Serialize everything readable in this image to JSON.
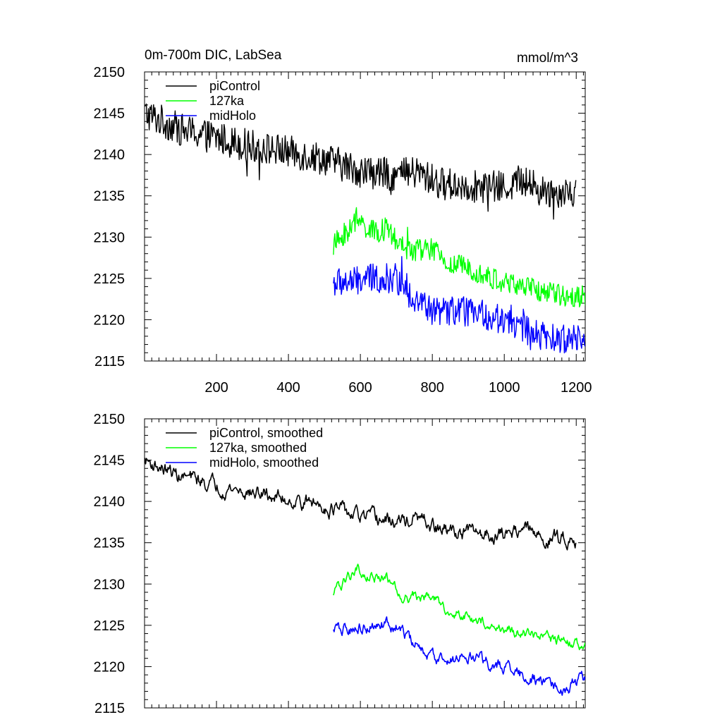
{
  "chart_data": [
    {
      "type": "line",
      "title": "0m-700m DIC, LabSea",
      "units": "mmol/m^3",
      "xlabel": "",
      "ylabel": "",
      "xlim": [
        0,
        1225
      ],
      "ylim": [
        2115,
        2150
      ],
      "xticks": [
        200,
        400,
        600,
        800,
        1000,
        1200
      ],
      "xtick_labels": [
        "200",
        "400",
        "600",
        "800",
        "1000",
        "1200"
      ],
      "yticks": [
        2115,
        2120,
        2125,
        2130,
        2135,
        2140,
        2145,
        2150
      ],
      "ytick_labels": [
        "2115",
        "2120",
        "2125",
        "2130",
        "2135",
        "2140",
        "2145",
        "2150"
      ],
      "grid": false,
      "legend_position": "top-left",
      "series": [
        {
          "name": "piControl",
          "color": "#000000",
          "x_start": 1,
          "x_end": 1200,
          "trend": [
            [
              0,
              2145
            ],
            [
              100,
              2143
            ],
            [
              200,
              2142
            ],
            [
              300,
              2141
            ],
            [
              400,
              2140.3
            ],
            [
              500,
              2139.5
            ],
            [
              600,
              2138
            ],
            [
              700,
              2137.5
            ],
            [
              760,
              2137.8
            ],
            [
              820,
              2136.5
            ],
            [
              900,
              2136.2
            ],
            [
              1000,
              2136
            ],
            [
              1050,
              2137
            ],
            [
              1100,
              2135.5
            ],
            [
              1200,
              2135.6
            ]
          ],
          "noise": 2.0
        },
        {
          "name": "127ka",
          "color": "#00ff00",
          "x_start": 525,
          "x_end": 1225,
          "trend": [
            [
              525,
              2129
            ],
            [
              560,
              2130.5
            ],
            [
              590,
              2132
            ],
            [
              640,
              2130.5
            ],
            [
              670,
              2131
            ],
            [
              720,
              2128.5
            ],
            [
              800,
              2128.5
            ],
            [
              850,
              2126.5
            ],
            [
              900,
              2126.5
            ],
            [
              960,
              2125
            ],
            [
              1050,
              2124
            ],
            [
              1150,
              2123
            ],
            [
              1225,
              2122.8
            ]
          ],
          "noise": 1.4
        },
        {
          "name": "midHolo",
          "color": "#0000ff",
          "x_start": 525,
          "x_end": 1225,
          "trend": [
            [
              525,
              2124.5
            ],
            [
              580,
              2124.5
            ],
            [
              620,
              2125
            ],
            [
              700,
              2125
            ],
            [
              740,
              2123
            ],
            [
              800,
              2121
            ],
            [
              850,
              2121
            ],
            [
              900,
              2121
            ],
            [
              1000,
              2120
            ],
            [
              1100,
              2118
            ],
            [
              1160,
              2117.5
            ],
            [
              1200,
              2118
            ],
            [
              1225,
              2118.5
            ]
          ],
          "noise": 1.8
        }
      ]
    },
    {
      "type": "line",
      "title": "",
      "units": "",
      "xlabel": "",
      "ylabel": "",
      "xlim": [
        0,
        1225
      ],
      "ylim": [
        2115,
        2150
      ],
      "xticks": [
        200,
        400,
        600,
        800,
        1000,
        1200
      ],
      "xtick_labels": [],
      "yticks": [
        2115,
        2120,
        2125,
        2130,
        2135,
        2140,
        2145,
        2150
      ],
      "ytick_labels": [
        "2115",
        "2120",
        "2125",
        "2130",
        "2135",
        "2140",
        "2145",
        "2150"
      ],
      "grid": false,
      "legend_position": "top-left",
      "series": [
        {
          "name": "piControl, smoothed",
          "color": "#000000",
          "x_start": 1,
          "x_end": 1200,
          "trend": [
            [
              0,
              2145
            ],
            [
              100,
              2143
            ],
            [
              200,
              2142
            ],
            [
              300,
              2141
            ],
            [
              400,
              2140.3
            ],
            [
              500,
              2139.5
            ],
            [
              600,
              2138
            ],
            [
              700,
              2137.5
            ],
            [
              760,
              2137.8
            ],
            [
              820,
              2136.5
            ],
            [
              900,
              2136.2
            ],
            [
              1000,
              2136
            ],
            [
              1050,
              2137
            ],
            [
              1100,
              2135.5
            ],
            [
              1200,
              2135.6
            ]
          ],
          "noise": 0.7
        },
        {
          "name": "127ka, smoothed",
          "color": "#00ff00",
          "x_start": 525,
          "x_end": 1225,
          "trend": [
            [
              525,
              2129
            ],
            [
              560,
              2130.5
            ],
            [
              590,
              2132
            ],
            [
              640,
              2130.5
            ],
            [
              670,
              2131
            ],
            [
              720,
              2128.5
            ],
            [
              800,
              2128.5
            ],
            [
              850,
              2126.5
            ],
            [
              900,
              2126.5
            ],
            [
              960,
              2125
            ],
            [
              1050,
              2124
            ],
            [
              1150,
              2123
            ],
            [
              1225,
              2122.8
            ]
          ],
          "noise": 0.5
        },
        {
          "name": "midHolo, smoothed",
          "color": "#0000ff",
          "x_start": 525,
          "x_end": 1225,
          "trend": [
            [
              525,
              2124.5
            ],
            [
              580,
              2124.5
            ],
            [
              620,
              2125
            ],
            [
              700,
              2125
            ],
            [
              740,
              2123
            ],
            [
              800,
              2121
            ],
            [
              850,
              2121
            ],
            [
              900,
              2121
            ],
            [
              1000,
              2120
            ],
            [
              1100,
              2118
            ],
            [
              1160,
              2117.5
            ],
            [
              1200,
              2118
            ],
            [
              1225,
              2118.5
            ]
          ],
          "noise": 0.6
        }
      ]
    }
  ]
}
